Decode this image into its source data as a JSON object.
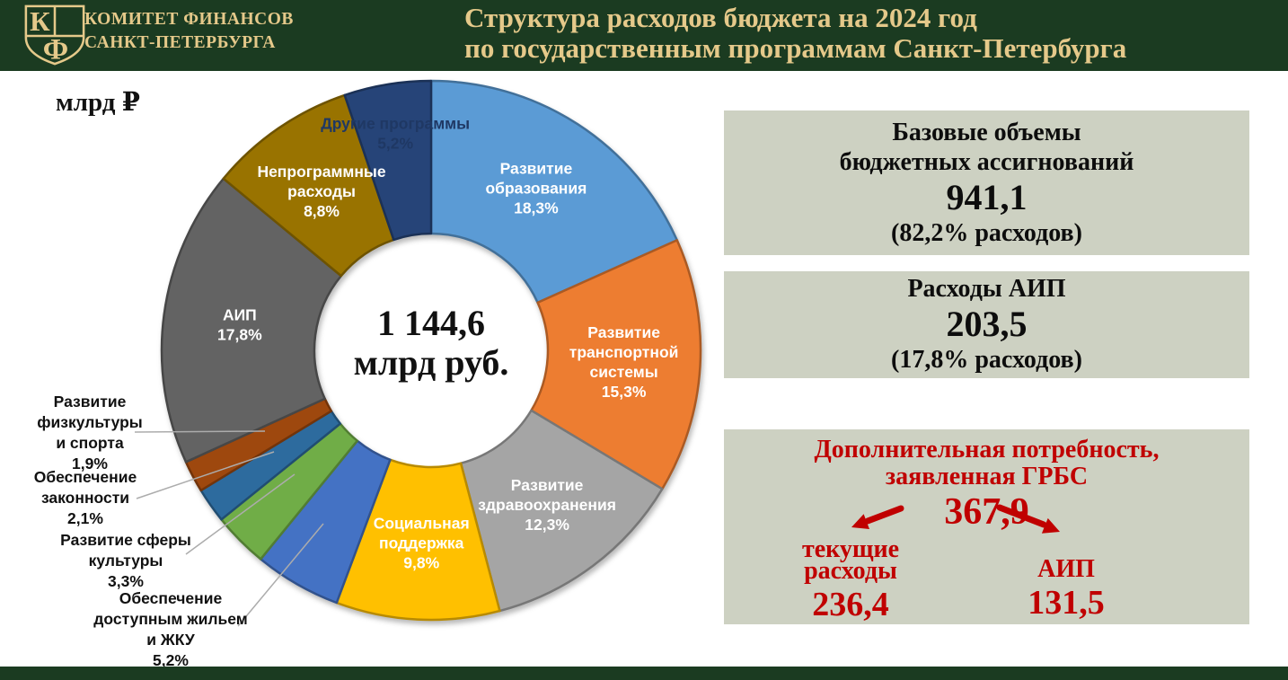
{
  "theme": {
    "header_bg": "#1B3B21",
    "gold": "#E5C98A",
    "panel_bg": "#CDD1C2",
    "red": "#C00000",
    "callout_line": "#ACACAC",
    "other_programs_label": "#1F3864"
  },
  "header": {
    "logo": {
      "k": "К",
      "f": "Ф"
    },
    "org1": "КОМИТЕТ ФИНАНСОВ",
    "org2": "САНКТ-ПЕТЕРБУРГА",
    "title1": "Структура расходов бюджета на 2024 год",
    "title2": "по государственным программам Санкт-Петербурга"
  },
  "chart_data": {
    "type": "pie",
    "donut": true,
    "direction": "clockwise",
    "start_angle_deg": 0,
    "units": "млрд ₽",
    "center_value": "1 144,6",
    "center_unit": "млрд руб.",
    "total_label": "1 144,6 млрд руб.",
    "segments": [
      {
        "label": "Развитие образования",
        "lines": [
          "Развитие",
          "образования"
        ],
        "pct": 18.3,
        "pct_display": "18,3%",
        "color": "#5B9BD5"
      },
      {
        "label": "Развитие транспортной системы",
        "lines": [
          "Развитие",
          "транспортной",
          "системы"
        ],
        "pct": 15.3,
        "pct_display": "15,3%",
        "color": "#ED7D31"
      },
      {
        "label": "Развитие здравоохранения",
        "lines": [
          "Развитие",
          "здравоохранения"
        ],
        "pct": 12.3,
        "pct_display": "12,3%",
        "color": "#A5A5A5"
      },
      {
        "label": "Социальная поддержка",
        "lines": [
          "Социальная",
          "поддержка"
        ],
        "pct": 9.8,
        "pct_display": "9,8%",
        "color": "#FFC000"
      },
      {
        "label": "Обеспечение доступным жильем и ЖКУ",
        "lines": [
          "Обеспечение",
          "доступным жильем",
          "и ЖКУ"
        ],
        "pct": 5.2,
        "pct_display": "5,2%",
        "color": "#4472C4"
      },
      {
        "label": "Развитие сферы культуры",
        "lines": [
          "Развитие сферы",
          "культуры"
        ],
        "pct": 3.3,
        "pct_display": "3,3%",
        "color": "#70AD47"
      },
      {
        "label": "Обеспечение законности",
        "lines": [
          "Обеспечение",
          "законности"
        ],
        "pct": 2.1,
        "pct_display": "2,1%",
        "color": "#2D6B9E"
      },
      {
        "label": "Развитие физкультуры и спорта",
        "lines": [
          "Развитие",
          "физкультуры",
          "и спорта"
        ],
        "pct": 1.9,
        "pct_display": "1,9%",
        "color": "#9E480E"
      },
      {
        "label": "АИП",
        "lines": [
          "АИП"
        ],
        "pct": 17.8,
        "pct_display": "17,8%",
        "color": "#636363"
      },
      {
        "label": "Непрограммные расходы",
        "lines": [
          "Непрограммные",
          "расходы"
        ],
        "pct": 8.8,
        "pct_display": "8,8%",
        "color": "#997300"
      },
      {
        "label": "Другие программы",
        "lines": [
          "Другие программы"
        ],
        "pct": 5.2,
        "pct_display": "5,2%",
        "color": "#264478"
      }
    ]
  },
  "panels": {
    "base": {
      "line1": "Базовые объемы",
      "line2": "бюджетных ассигнований",
      "value": "941,1",
      "note": "(82,2% расходов)"
    },
    "aip": {
      "line1": "Расходы АИП",
      "value": "203,5",
      "note": "(17,8% расходов)"
    },
    "extra": {
      "line1": "Дополнительная потребность,",
      "line2": "заявленная ГРБС",
      "value": "367,9",
      "left1": "текущие",
      "left2": "расходы",
      "left_value": "236,4",
      "right_label": "АИП",
      "right_value": "131,5"
    }
  }
}
